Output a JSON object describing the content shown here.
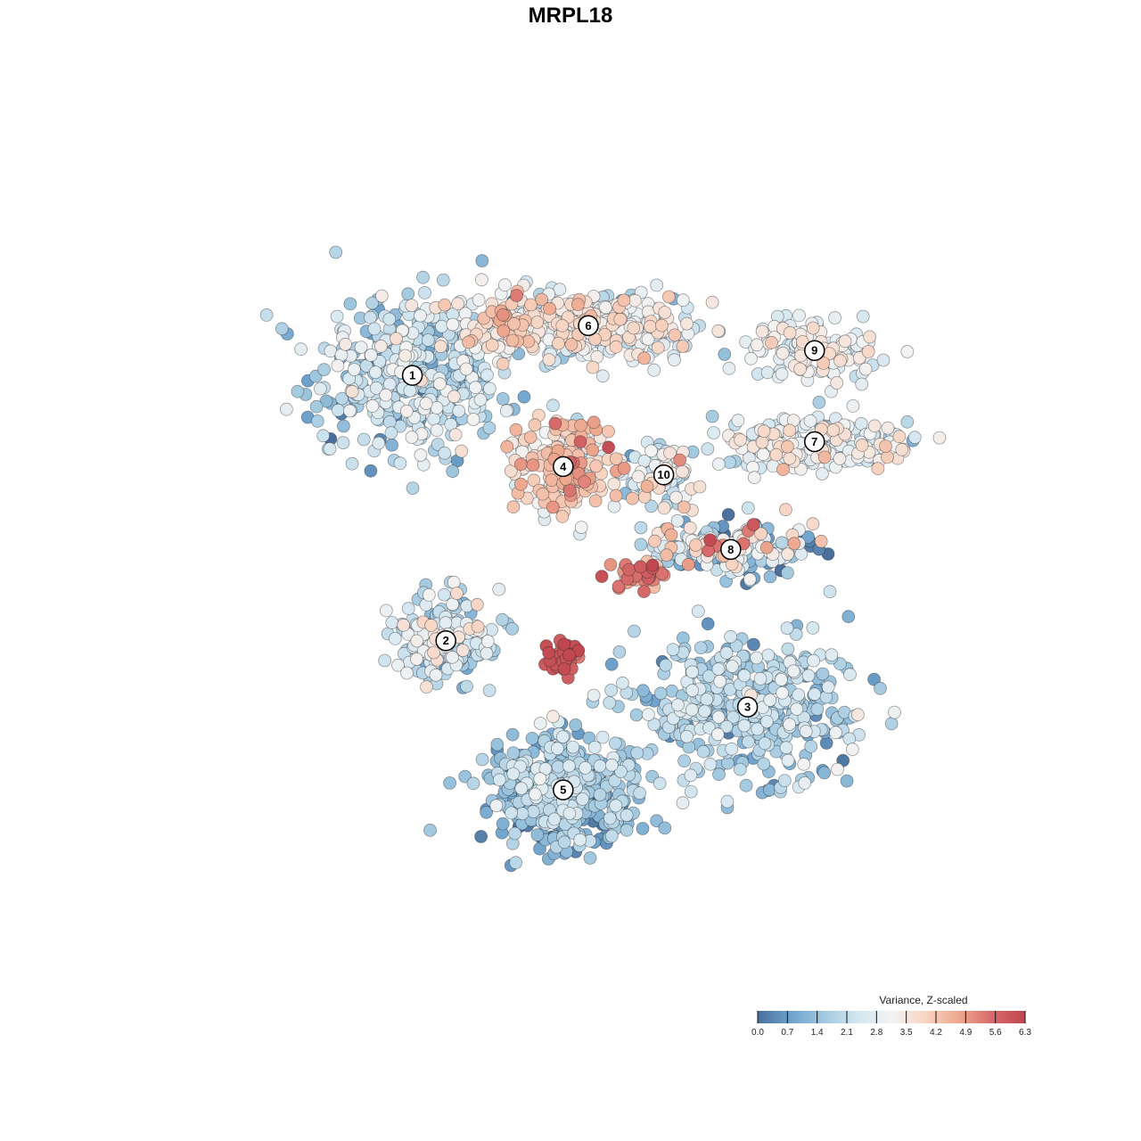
{
  "title": "MRPL18",
  "chart_data": {
    "type": "scatter",
    "title": "MRPL18",
    "xlabel": "",
    "ylabel": "",
    "grid": false,
    "legend_placement": "bottom-right",
    "color_scale": {
      "title": "Variance, Z-scaled",
      "min": 0.0,
      "max": 6.3,
      "ticks": [
        "0.0",
        "0.7",
        "1.4",
        "2.1",
        "2.8",
        "3.5",
        "4.2",
        "4.9",
        "5.6",
        "6.3"
      ],
      "colors": [
        "#4a6f9c",
        "#6ea3cd",
        "#a2c9e0",
        "#d3e6f0",
        "#f3f3f3",
        "#f8d5c3",
        "#eea98f",
        "#d76a6a",
        "#c0464f"
      ]
    },
    "clusters": [
      {
        "label": "1",
        "x": 0.29,
        "y": 0.73,
        "spread": [
          0.11,
          0.09
        ],
        "n": 420,
        "mean": 2.0,
        "sd": 0.7
      },
      {
        "label": "6",
        "x": 0.5,
        "y": 0.79,
        "spread": [
          0.13,
          0.04
        ],
        "n": 380,
        "mean": 2.9,
        "sd": 0.7
      },
      {
        "label": "4",
        "x": 0.47,
        "y": 0.62,
        "spread": [
          0.05,
          0.05
        ],
        "n": 220,
        "mean": 3.9,
        "sd": 0.7
      },
      {
        "label": "9",
        "x": 0.77,
        "y": 0.76,
        "spread": [
          0.07,
          0.03
        ],
        "n": 140,
        "mean": 2.9,
        "sd": 0.5
      },
      {
        "label": "7",
        "x": 0.77,
        "y": 0.65,
        "spread": [
          0.11,
          0.03
        ],
        "n": 200,
        "mean": 2.8,
        "sd": 0.6
      },
      {
        "label": "10",
        "x": 0.59,
        "y": 0.61,
        "spread": [
          0.04,
          0.04
        ],
        "n": 90,
        "mean": 2.6,
        "sd": 0.9
      },
      {
        "label": "8",
        "x": 0.67,
        "y": 0.52,
        "spread": [
          0.09,
          0.03
        ],
        "n": 210,
        "mean": 2.0,
        "sd": 1.5
      },
      {
        "label": "2",
        "x": 0.33,
        "y": 0.41,
        "spread": [
          0.06,
          0.05
        ],
        "n": 200,
        "mean": 2.2,
        "sd": 0.8
      },
      {
        "label": "3",
        "x": 0.69,
        "y": 0.33,
        "spread": [
          0.12,
          0.07
        ],
        "n": 420,
        "mean": 1.8,
        "sd": 0.6
      },
      {
        "label": "5",
        "x": 0.47,
        "y": 0.23,
        "spread": [
          0.08,
          0.06
        ],
        "n": 460,
        "mean": 1.4,
        "sd": 0.6
      }
    ],
    "hotspots": [
      {
        "x": 0.47,
        "y": 0.39,
        "spread": [
          0.02,
          0.02
        ],
        "n": 40,
        "mean": 5.9,
        "sd": 0.3
      },
      {
        "x": 0.56,
        "y": 0.49,
        "spread": [
          0.03,
          0.015
        ],
        "n": 40,
        "mean": 5.1,
        "sd": 0.5
      },
      {
        "x": 0.4,
        "y": 0.79,
        "spread": [
          0.04,
          0.03
        ],
        "n": 50,
        "mean": 4.0,
        "sd": 0.4
      }
    ]
  }
}
